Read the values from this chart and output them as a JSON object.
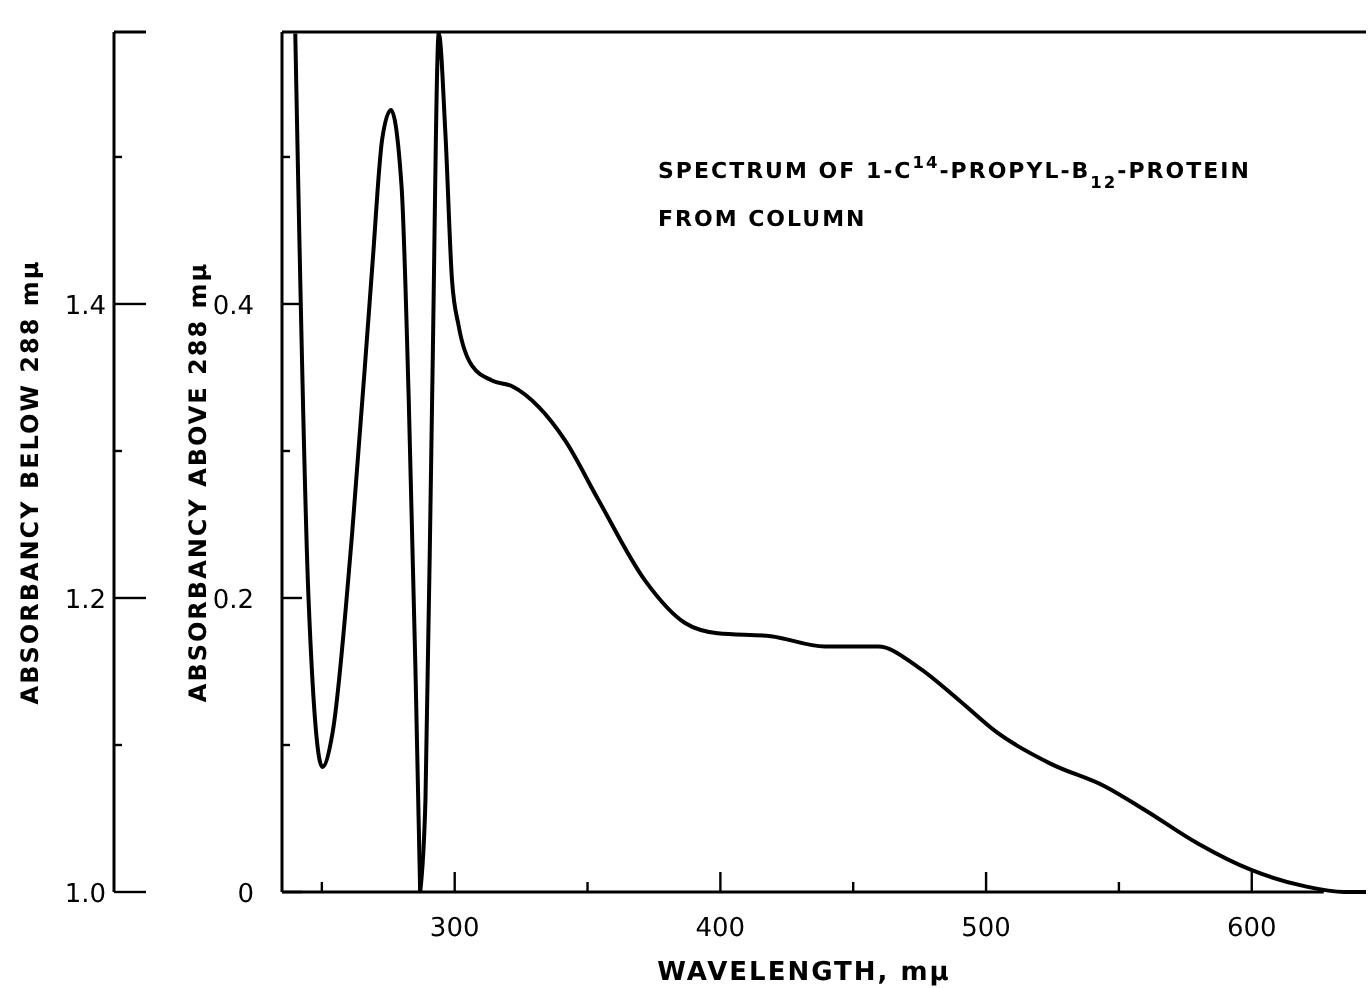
{
  "chart_data": {
    "type": "line",
    "xlabel": "WAVELENGTH, mμ",
    "ylabel": "ABSORBANCY ABOVE 288 mμ",
    "y2label": "ABSORBANCY BELOW 288 mμ",
    "annotations": [
      "SPECTRUM OF 1-C$^{14}$-PROPYL-B$_{12}$-PROTEIN",
      "FROM COLUMN"
    ],
    "xlim": [
      235,
      643
    ],
    "ylim": [
      0,
      0.585
    ],
    "y2lim": [
      1.0,
      1.585
    ],
    "xticks": [
      {
        "value": 250,
        "label": null
      },
      300,
      {
        "value": 350,
        "label": null
      },
      400,
      {
        "value": 450,
        "label": null
      },
      500,
      {
        "value": 550,
        "label": null
      },
      600
    ],
    "yticks": [
      {
        "value": 0,
        "label": "0"
      },
      {
        "value": 0.1,
        "label": null
      },
      0.2,
      {
        "value": 0.3,
        "label": null
      },
      0.4,
      {
        "value": 0.5,
        "label": null
      }
    ],
    "y2ticks": [
      {
        "value": 1.0,
        "label": "1.0"
      },
      {
        "value": 1.1,
        "label": null
      },
      1.2,
      {
        "value": 1.3,
        "label": null
      },
      1.4,
      {
        "value": 1.5,
        "label": null
      }
    ],
    "series": [
      {
        "color": "#000000",
        "axis": "y2",
        "x": [
          240,
          245,
          250.2,
          254,
          261.4,
          269,
          272.7,
          276,
          280,
          282.7,
          285.2,
          287
        ],
        "values": [
          1.584,
          1.199,
          1.085,
          1.108,
          1.244,
          1.426,
          1.512,
          1.532,
          1.48,
          1.335,
          1.154,
          1.0
        ]
      },
      {
        "color": "#000000",
        "axis": "y",
        "x": [
          287,
          289,
          291.5,
          294,
          296.5,
          299,
          301.5,
          306.5,
          314,
          321.6,
          331.6,
          341.6,
          354,
          371.6,
          386.7,
          399,
          419,
          439.3,
          459.4,
          474.4,
          489.5,
          504.5,
          524.6,
          544.6,
          559.6,
          579.7,
          599.8,
          619.8,
          634.8,
          643
        ],
        "values": [
          0.0,
          0.063,
          0.335,
          0.584,
          0.516,
          0.416,
          0.385,
          0.358,
          0.348,
          0.344,
          0.33,
          0.307,
          0.267,
          0.212,
          0.183,
          0.176,
          0.174,
          0.167,
          0.167,
          0.153,
          0.131,
          0.108,
          0.087,
          0.072,
          0.056,
          0.033,
          0.015,
          0.004,
          0.0,
          0.0
        ]
      }
    ]
  }
}
